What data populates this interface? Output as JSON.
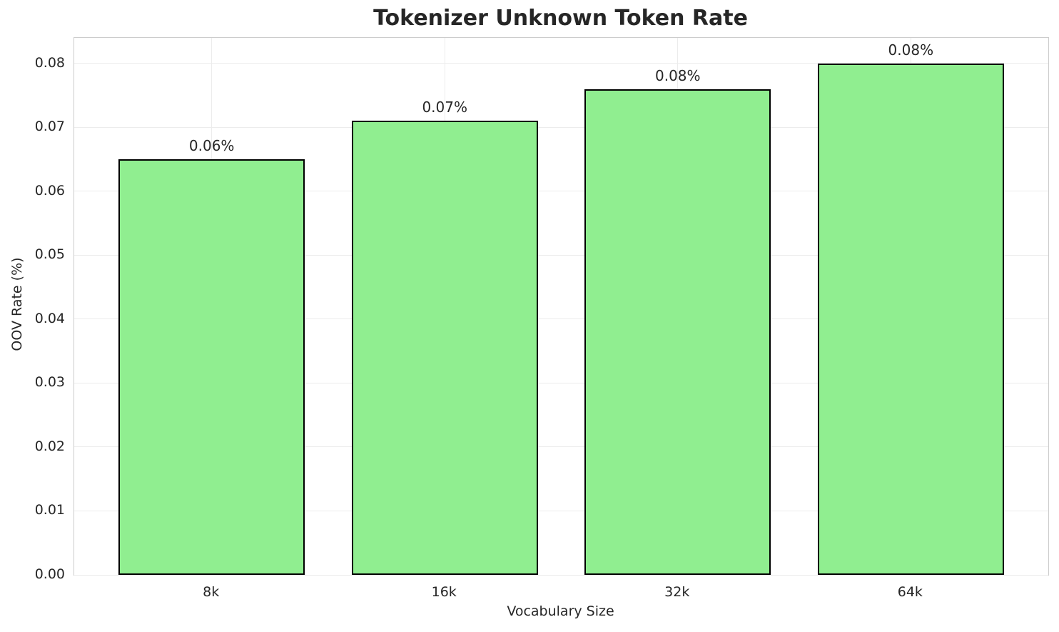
{
  "chart_data": {
    "type": "bar",
    "title": "Tokenizer Unknown Token Rate",
    "xlabel": "Vocabulary Size",
    "ylabel": "OOV Rate (%)",
    "categories": [
      "8k",
      "16k",
      "32k",
      "64k"
    ],
    "values": [
      0.065,
      0.071,
      0.076,
      0.08
    ],
    "bar_labels": [
      "0.06%",
      "0.07%",
      "0.08%",
      "0.08%"
    ],
    "ylim": [
      0,
      0.084
    ],
    "ytick_values": [
      0.0,
      0.01,
      0.02,
      0.03,
      0.04,
      0.05,
      0.06,
      0.07,
      0.08
    ],
    "ytick_labels": [
      "0.00",
      "0.01",
      "0.02",
      "0.03",
      "0.04",
      "0.05",
      "0.06",
      "0.07",
      "0.08"
    ],
    "grid": true,
    "legend_position": "none",
    "colors": {
      "bar_fill": "#90EE90",
      "bar_edge": "#000000",
      "grid": "#ececec",
      "spine": "#cccccc",
      "text": "#262626",
      "background": "#ffffff"
    }
  }
}
